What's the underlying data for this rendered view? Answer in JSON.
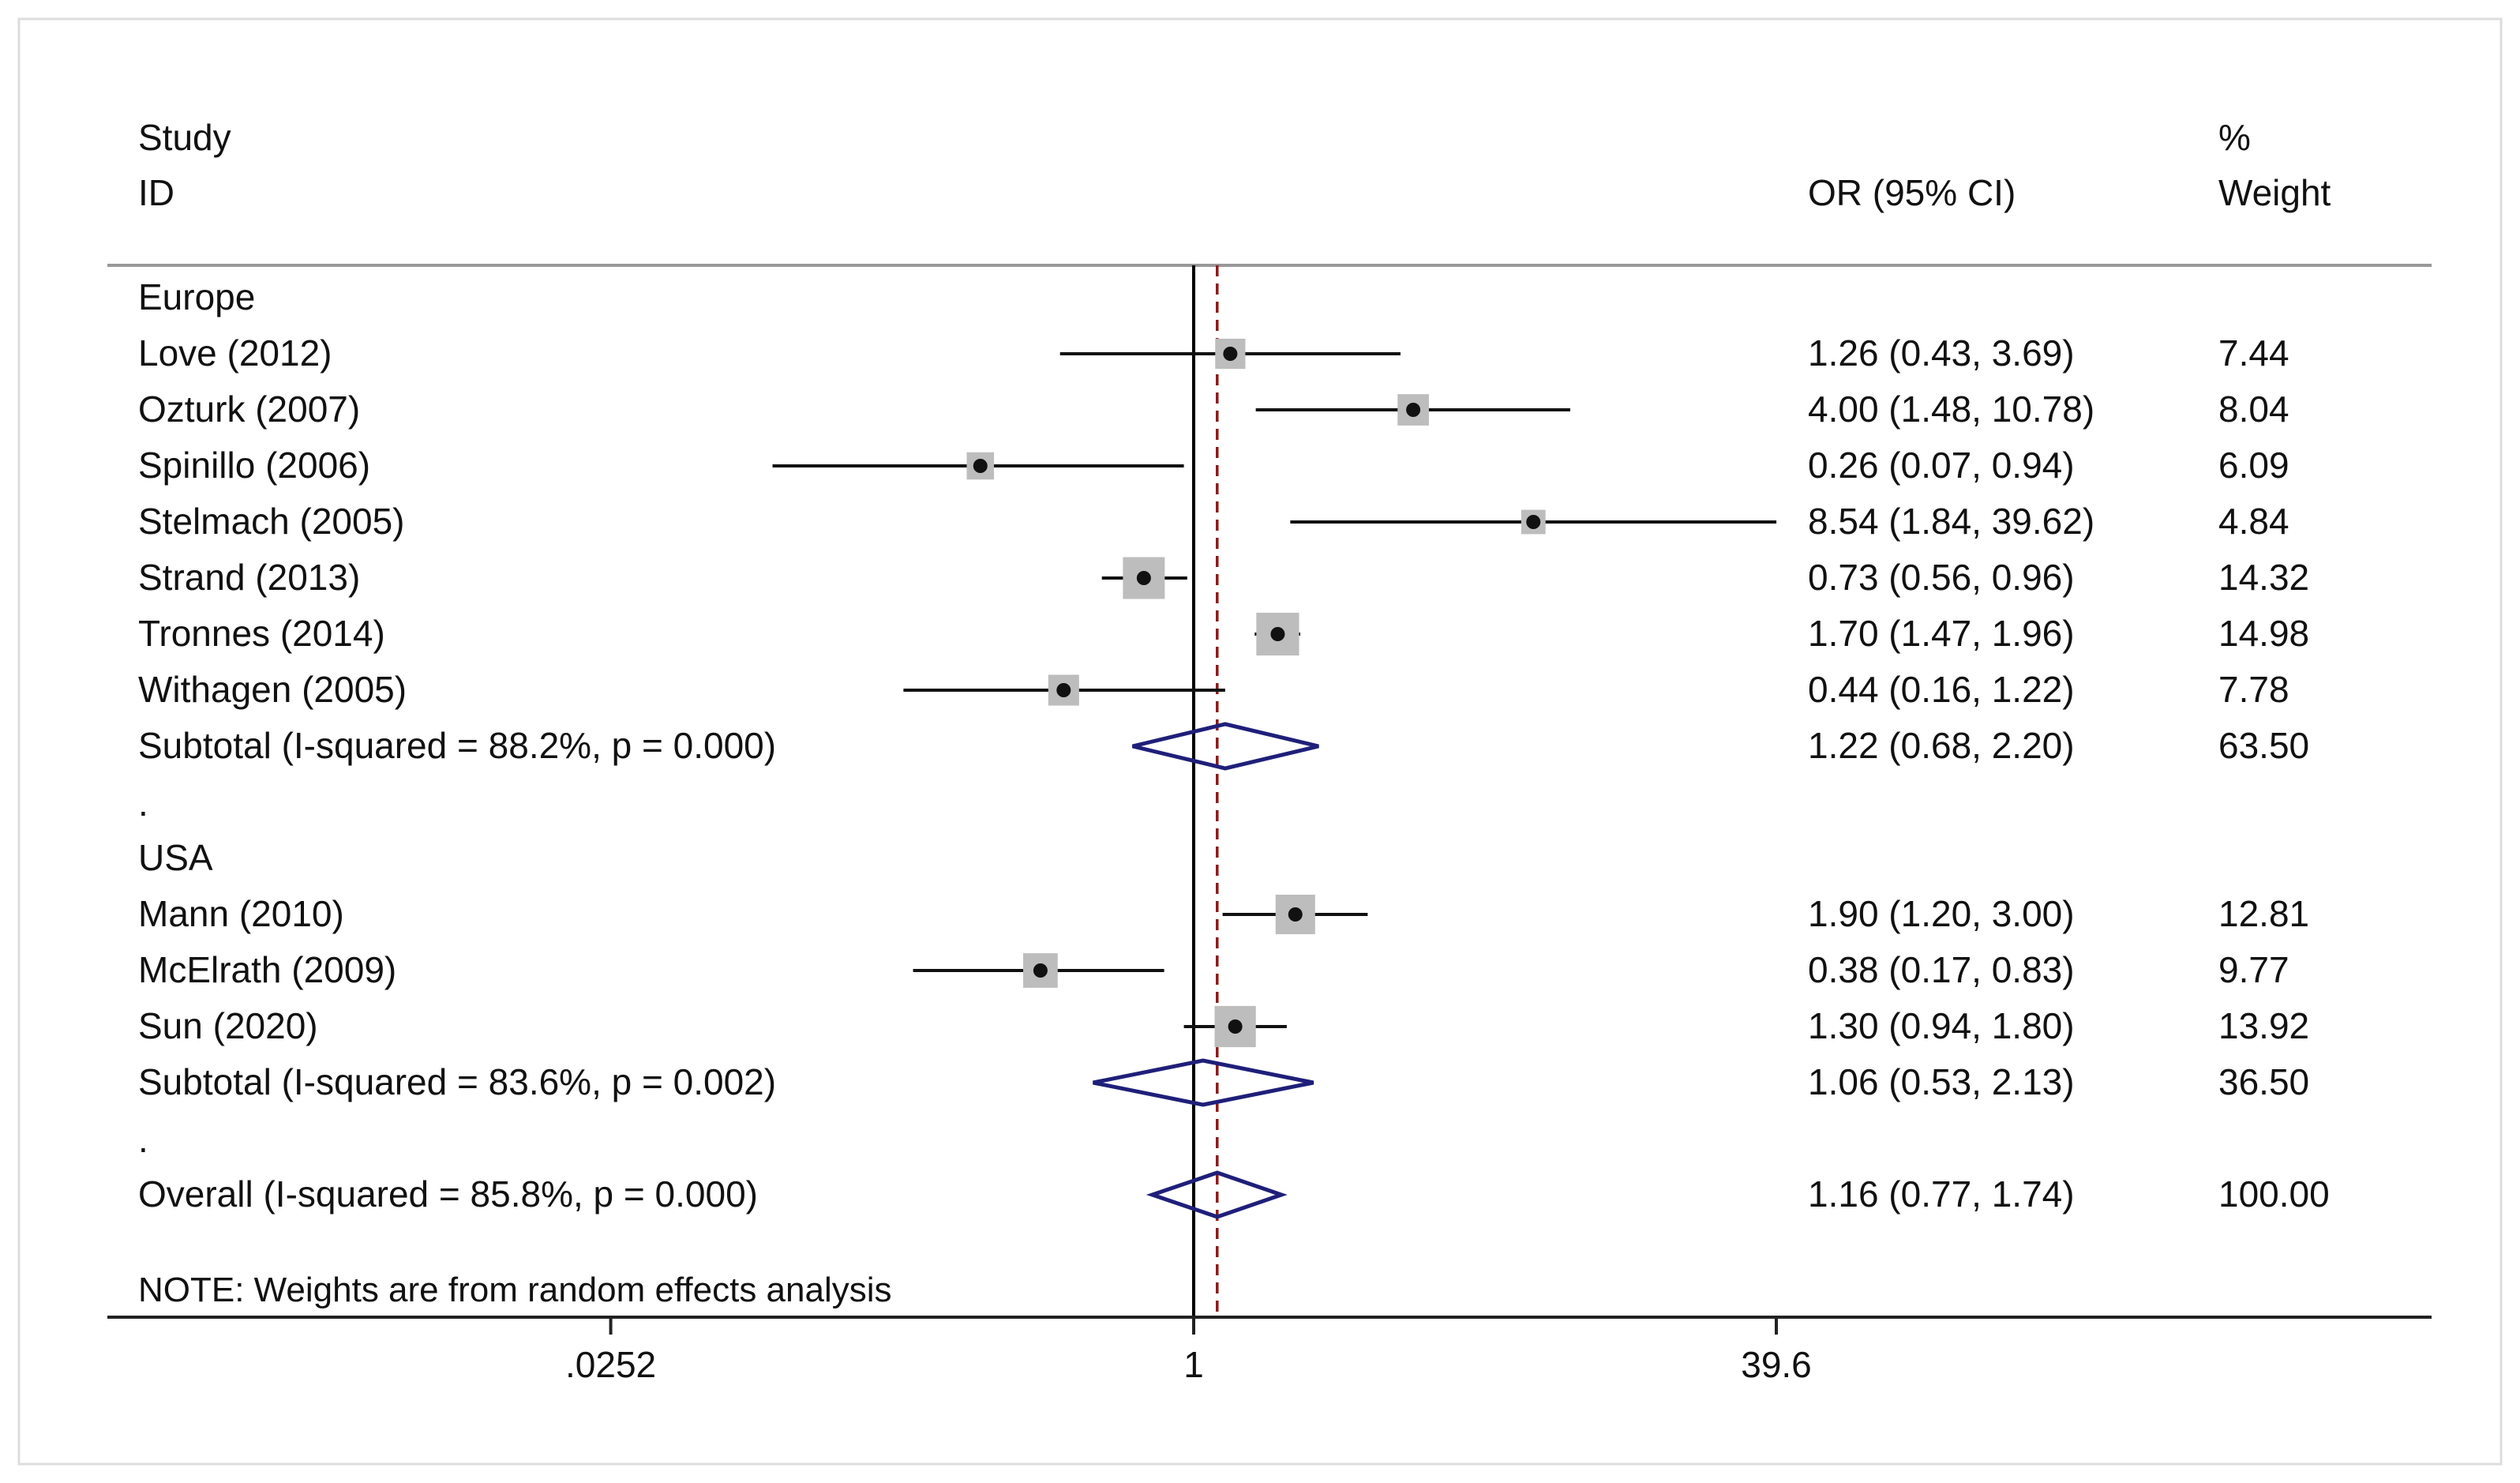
{
  "chart_data": {
    "type": "forest",
    "header": {
      "study_line1": "Study",
      "study_line2": "ID",
      "effect_label": "OR (95% CI)",
      "weight_line1": "%",
      "weight_line2": "Weight"
    },
    "scale": "log",
    "null_value": 1,
    "overall_estimate": 1.16,
    "x_ticks": [
      {
        "value": 0.0252,
        "label": ".0252"
      },
      {
        "value": 1,
        "label": "1"
      },
      {
        "value": 39.6,
        "label": "39.6"
      }
    ],
    "groups": [
      {
        "name": "Europe",
        "studies": [
          {
            "id": "Love (2012)",
            "or": 1.26,
            "lo": 0.43,
            "hi": 3.69,
            "ci_label": "1.26 (0.43, 3.69)",
            "weight": 7.44,
            "weight_label": "7.44"
          },
          {
            "id": "Ozturk (2007)",
            "or": 4.0,
            "lo": 1.48,
            "hi": 10.78,
            "ci_label": "4.00 (1.48, 10.78)",
            "weight": 8.04,
            "weight_label": "8.04"
          },
          {
            "id": "Spinillo (2006)",
            "or": 0.26,
            "lo": 0.07,
            "hi": 0.94,
            "ci_label": "0.26 (0.07, 0.94)",
            "weight": 6.09,
            "weight_label": "6.09"
          },
          {
            "id": "Stelmach (2005)",
            "or": 8.54,
            "lo": 1.84,
            "hi": 39.62,
            "ci_label": "8.54 (1.84, 39.62)",
            "weight": 4.84,
            "weight_label": "4.84"
          },
          {
            "id": "Strand (2013)",
            "or": 0.73,
            "lo": 0.56,
            "hi": 0.96,
            "ci_label": "0.73 (0.56, 0.96)",
            "weight": 14.32,
            "weight_label": "14.32"
          },
          {
            "id": "Tronnes (2014)",
            "or": 1.7,
            "lo": 1.47,
            "hi": 1.96,
            "ci_label": "1.70 (1.47, 1.96)",
            "weight": 14.98,
            "weight_label": "14.98"
          },
          {
            "id": "Withagen (2005)",
            "or": 0.44,
            "lo": 0.16,
            "hi": 1.22,
            "ci_label": "0.44 (0.16, 1.22)",
            "weight": 7.78,
            "weight_label": "7.78"
          }
        ],
        "subtotal": {
          "label": "Subtotal  (I-squared = 88.2%, p = 0.000)",
          "or": 1.22,
          "lo": 0.68,
          "hi": 2.2,
          "ci_label": "1.22 (0.68, 2.20)",
          "weight_label": "63.50"
        }
      },
      {
        "name": "USA",
        "studies": [
          {
            "id": "Mann (2010)",
            "or": 1.9,
            "lo": 1.2,
            "hi": 3.0,
            "ci_label": "1.90 (1.20, 3.00)",
            "weight": 12.81,
            "weight_label": "12.81"
          },
          {
            "id": "McElrath (2009)",
            "or": 0.38,
            "lo": 0.17,
            "hi": 0.83,
            "ci_label": "0.38 (0.17, 0.83)",
            "weight": 9.77,
            "weight_label": "9.77"
          },
          {
            "id": "Sun (2020)",
            "or": 1.3,
            "lo": 0.94,
            "hi": 1.8,
            "ci_label": "1.30 (0.94, 1.80)",
            "weight": 13.92,
            "weight_label": "13.92"
          }
        ],
        "subtotal": {
          "label": "Subtotal  (I-squared = 83.6%, p = 0.002)",
          "or": 1.06,
          "lo": 0.53,
          "hi": 2.13,
          "ci_label": "1.06 (0.53, 2.13)",
          "weight_label": "36.50"
        }
      }
    ],
    "separator": ".",
    "overall": {
      "label": "Overall  (I-squared = 85.8%, p = 0.000)",
      "or": 1.16,
      "lo": 0.77,
      "hi": 1.74,
      "ci_label": "1.16 (0.77, 1.74)",
      "weight_label": "100.00"
    },
    "note": "NOTE: Weights are from random effects analysis",
    "colors": {
      "text": "#111111",
      "ci_line": "#111111",
      "weight_box": "#bdbdbd",
      "point": "#111111",
      "diamond": "#1f1f7a",
      "null_line": "#000000",
      "overall_line": "#8b1a1a",
      "rule": "#999999",
      "border": "#d9d9d9"
    }
  }
}
